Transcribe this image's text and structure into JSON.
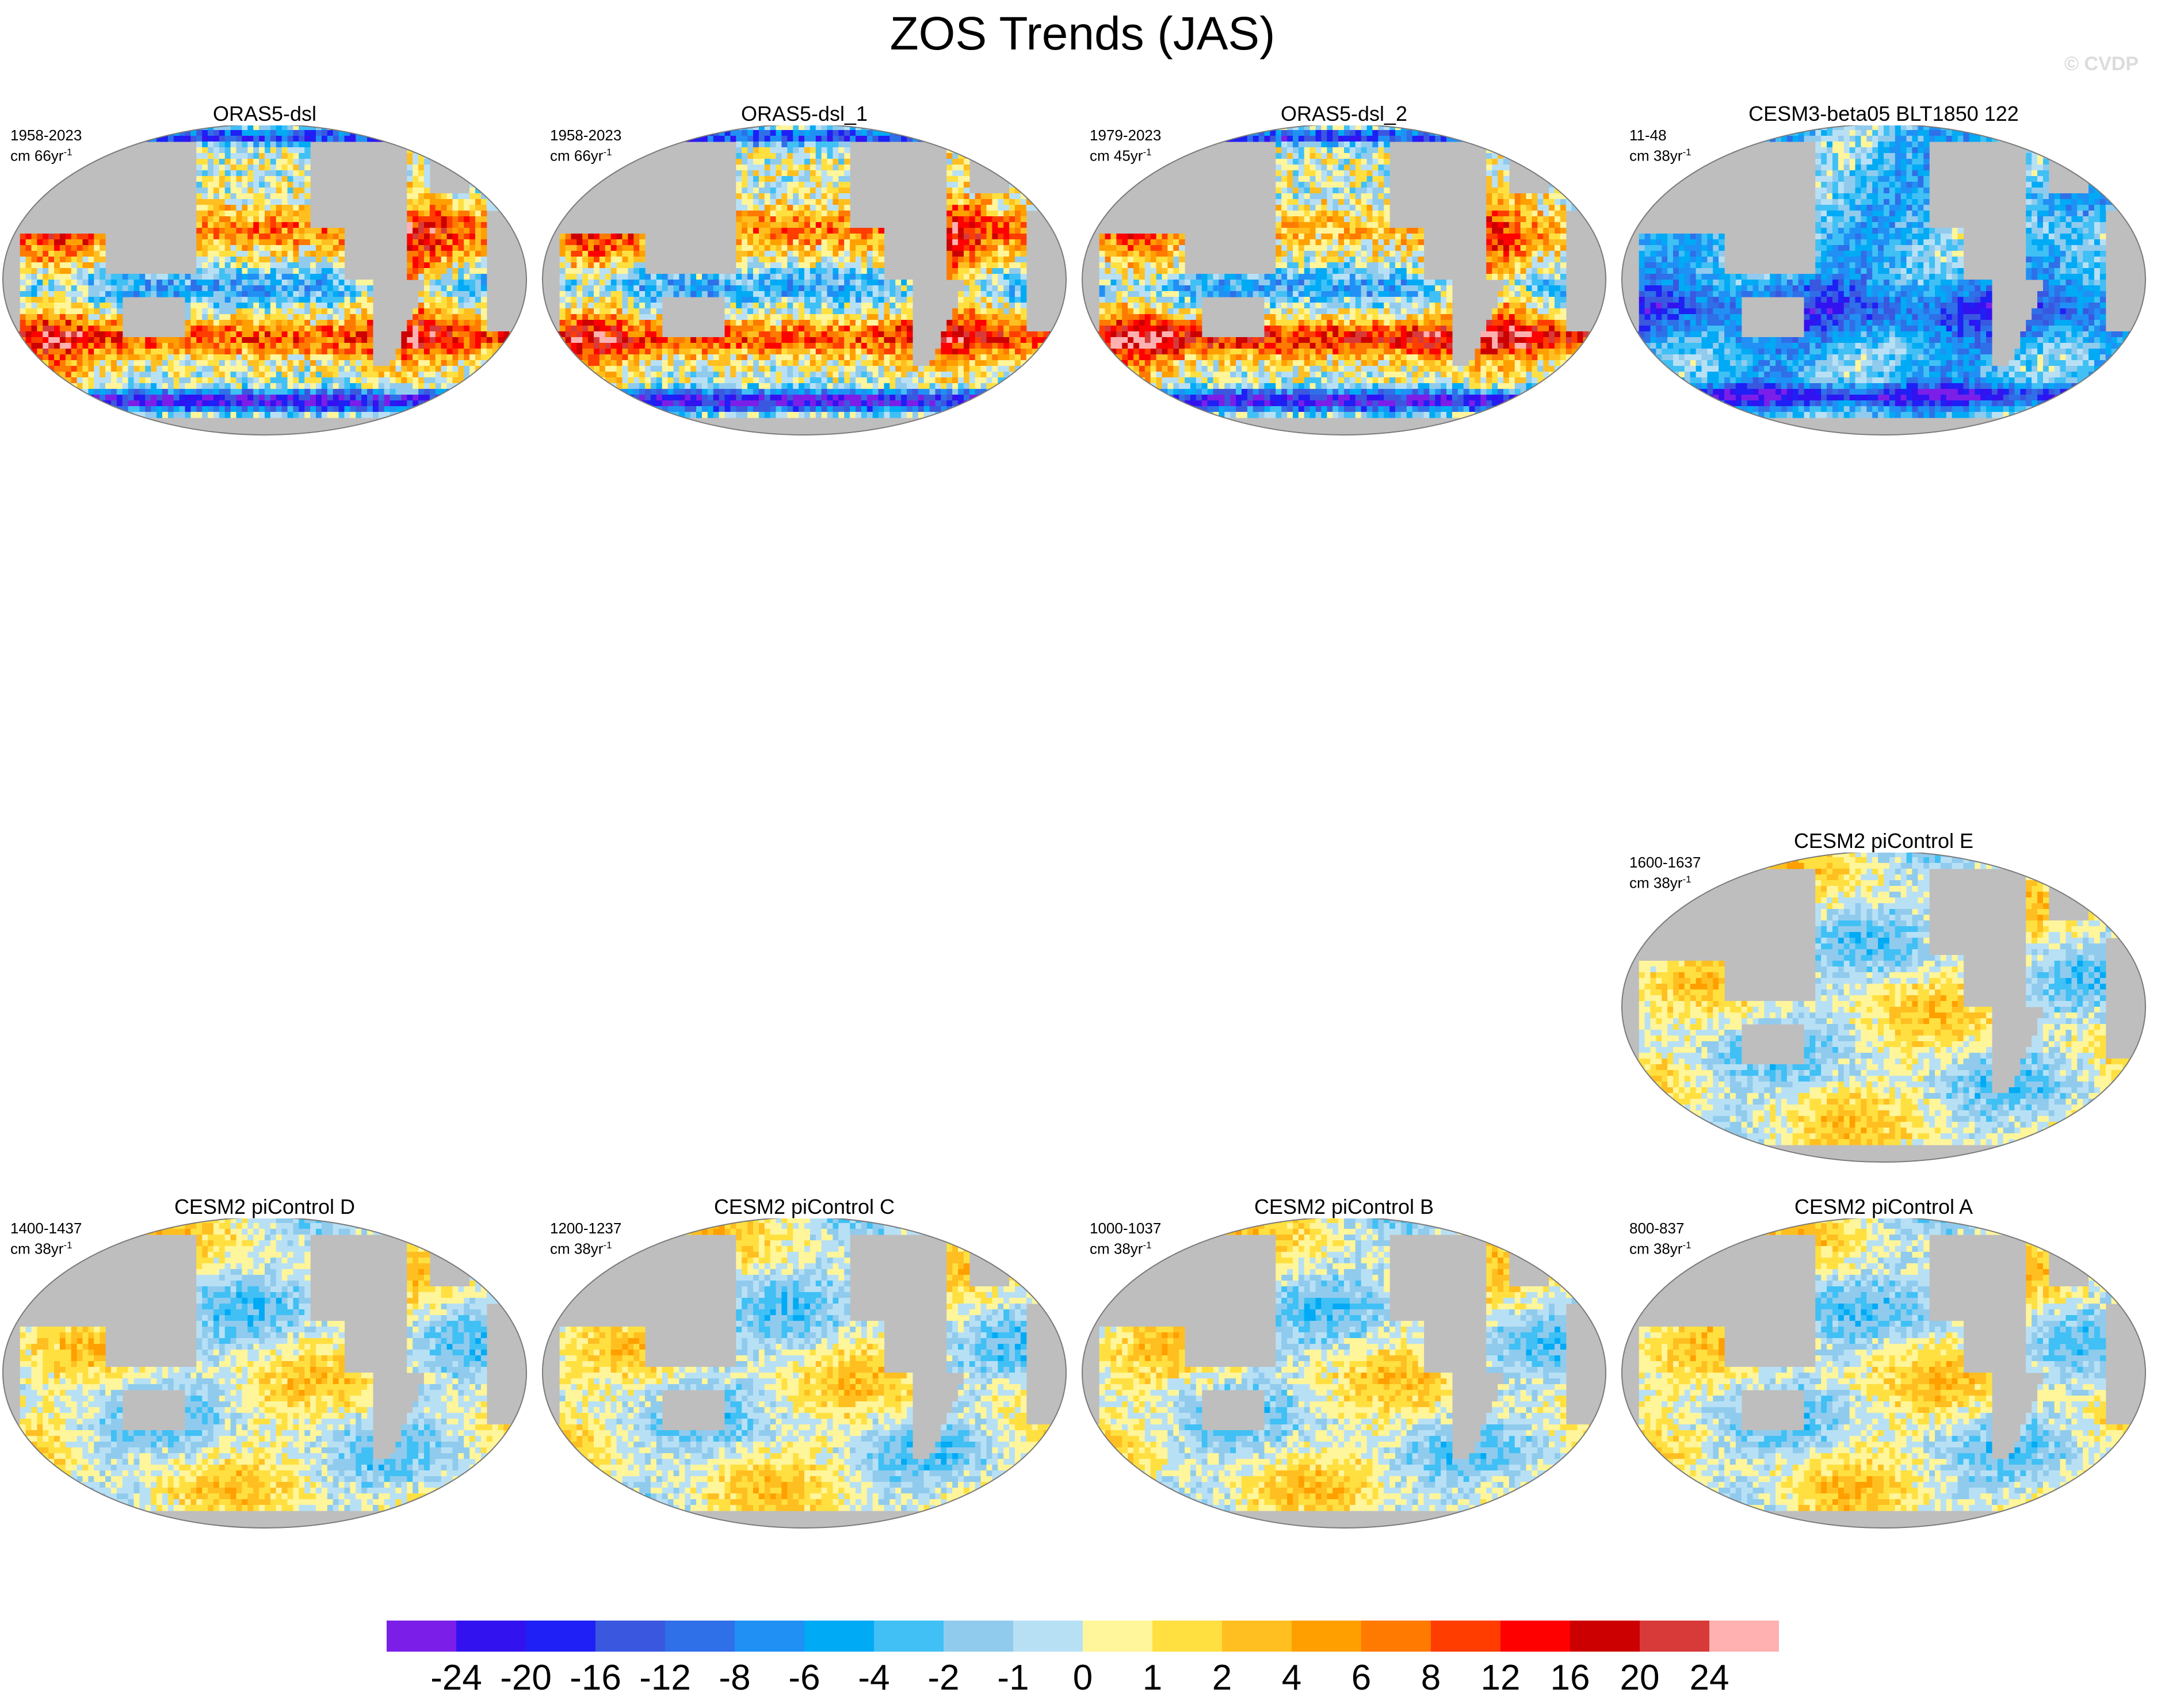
{
  "title": "ZOS Trends (JAS)",
  "watermark": "© CVDP",
  "colors": {
    "land": "#bebebe",
    "coast": "#7a7a7a",
    "scale": [
      "#7b1fe8",
      "#3312f0",
      "#1e20f5",
      "#3a57e0",
      "#2f6fe8",
      "#2090f5",
      "#00aaf5",
      "#40c0f5",
      "#90cbed",
      "#b8e0f5",
      "#fff59a",
      "#ffe040",
      "#ffbf20",
      "#ff9f00",
      "#ff7a00",
      "#ff3d00",
      "#ff0000",
      "#cc0000",
      "#d83a3a",
      "#ffb0b0"
    ]
  },
  "chart_data": {
    "type": "heatmap",
    "title": "ZOS Trends (JAS)",
    "colorbar": {
      "labels": [
        "-24",
        "-20",
        "-16",
        "-12",
        "-8",
        "-6",
        "-4",
        "-2",
        "-1",
        "0",
        "1",
        "2",
        "4",
        "6",
        "8",
        "12",
        "16",
        "20",
        "24"
      ],
      "boundaries": [
        -24,
        -20,
        -16,
        -12,
        -8,
        -6,
        -4,
        -2,
        -1,
        0,
        1,
        2,
        4,
        6,
        8,
        12,
        16,
        20,
        24
      ]
    },
    "panels": [
      {
        "title": "ORAS5-dsl",
        "years": "1958-2023",
        "units": "cm 66yr",
        "exp": "-1",
        "pattern": "oras",
        "seed": 11
      },
      {
        "title": "ORAS5-dsl_1",
        "years": "1958-2023",
        "units": "cm 66yr",
        "exp": "-1",
        "pattern": "oras",
        "seed": 23
      },
      {
        "title": "ORAS5-dsl_2",
        "years": "1979-2023",
        "units": "cm 45yr",
        "exp": "-1",
        "pattern": "oras2",
        "seed": 37
      },
      {
        "title": "CESM3-beta05 BLT1850 122",
        "years": "11-48",
        "units": "cm 38yr",
        "exp": "-1",
        "pattern": "cesm3",
        "seed": 41
      },
      {
        "title": "CESM2 piControl E",
        "years": "1600-1637",
        "units": "cm 38yr",
        "exp": "-1",
        "pattern": "pi",
        "seed": 53
      },
      {
        "title": "CESM2 piControl D",
        "years": "1400-1437",
        "units": "cm 38yr",
        "exp": "-1",
        "pattern": "pi",
        "seed": 67
      },
      {
        "title": "CESM2 piControl C",
        "years": "1200-1237",
        "units": "cm 38yr",
        "exp": "-1",
        "pattern": "pi",
        "seed": 71
      },
      {
        "title": "CESM2 piControl B",
        "years": "1000-1037",
        "units": "cm 38yr",
        "exp": "-1",
        "pattern": "pi",
        "seed": 83
      },
      {
        "title": "CESM2 piControl A",
        "years": "800-837",
        "units": "cm 38yr",
        "exp": "-1",
        "pattern": "pi",
        "seed": 97
      }
    ]
  }
}
